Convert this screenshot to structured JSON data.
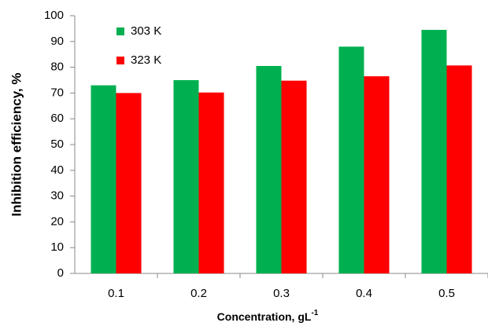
{
  "chart_data": {
    "type": "bar",
    "x_label": "Concentration, gL",
    "x_label_superscript": "-1",
    "y_label": "Inhibition efficiency, %",
    "categories": [
      "0.1",
      "0.2",
      "0.3",
      "0.4",
      "0.5"
    ],
    "series": [
      {
        "name": "303 K",
        "color": "#00b050",
        "values": [
          73,
          75,
          80.5,
          88,
          94.5
        ]
      },
      {
        "name": "323 K",
        "color": "#ff0000",
        "values": [
          70,
          70.2,
          74.8,
          76.5,
          80.7
        ]
      }
    ],
    "ylim": [
      0,
      100
    ],
    "yticks": [
      0,
      10,
      20,
      30,
      40,
      50,
      60,
      70,
      80,
      90,
      100
    ],
    "grid": false,
    "legend": "top-left"
  }
}
